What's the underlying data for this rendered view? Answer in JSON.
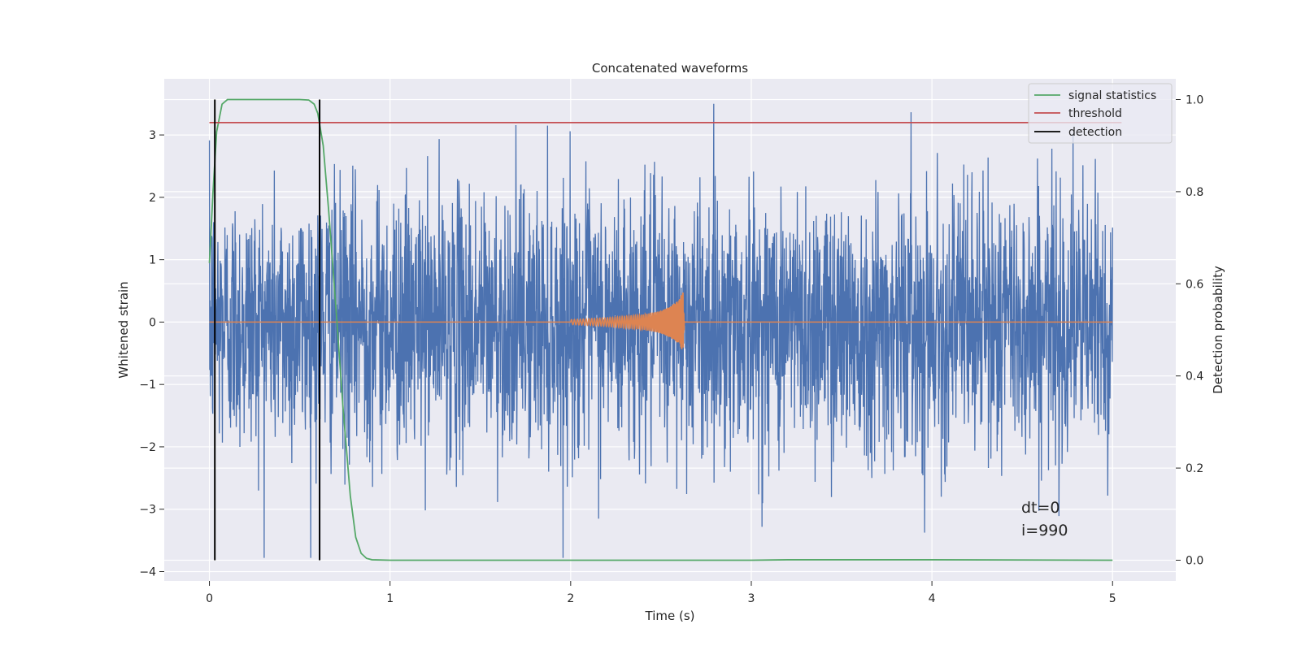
{
  "chart_data": {
    "type": "line",
    "title": "Concatenated waveforms",
    "xlabel": "Time (s)",
    "ylabel_left": "Whitened strain",
    "ylabel_right": "Detection probability",
    "xlim": [
      -0.25,
      5.35
    ],
    "ylim_left": [
      -4.15,
      3.9
    ],
    "ylim_right": [
      -0.045,
      1.045
    ],
    "x_ticks": [
      0,
      1,
      2,
      3,
      4,
      5
    ],
    "x_tick_labels": [
      "0",
      "1",
      "2",
      "3",
      "4",
      "5"
    ],
    "y_left_ticks": [
      -4,
      -3,
      -2,
      -1,
      0,
      1,
      2,
      3
    ],
    "y_left_tick_labels": [
      "−4",
      "−3",
      "−2",
      "−1",
      "0",
      "1",
      "2",
      "3"
    ],
    "y_right_ticks": [
      0.0,
      0.2,
      0.4,
      0.6,
      0.8,
      1.0
    ],
    "y_right_tick_labels": [
      "0.0",
      "0.2",
      "0.4",
      "0.6",
      "0.8",
      "1.0"
    ],
    "grid": true,
    "legend_placement": "top-right",
    "legend": [
      {
        "label": "signal statistics",
        "color": "#55a868"
      },
      {
        "label": "threshold",
        "color": "#c44e52"
      },
      {
        "label": "detection",
        "color": "#000000"
      }
    ],
    "series": [
      {
        "name": "",
        "kind": "noise",
        "axis": "left",
        "color": "#4c72b0",
        "x_range": [
          0,
          5
        ],
        "y_range": [
          -3.78,
          3.5
        ]
      },
      {
        "name": "",
        "kind": "chirp",
        "axis": "left",
        "color": "#dd8452",
        "x": [
          0,
          2.0,
          2.2,
          2.4,
          2.5,
          2.55,
          2.6,
          2.625,
          2.63,
          5
        ],
        "amplitude": [
          0,
          0.04,
          0.07,
          0.12,
          0.18,
          0.25,
          0.35,
          0.5,
          0,
          0
        ]
      },
      {
        "name": "signal statistics",
        "axis": "right",
        "color": "#55a868",
        "x": [
          0,
          0.02,
          0.04,
          0.07,
          0.1,
          0.2,
          0.3,
          0.4,
          0.5,
          0.55,
          0.58,
          0.6,
          0.63,
          0.66,
          0.7,
          0.74,
          0.78,
          0.81,
          0.84,
          0.87,
          0.9,
          1.0,
          2.0,
          3.0,
          3.2,
          4.0,
          5.0
        ],
        "y": [
          0.645,
          0.8,
          0.93,
          0.99,
          1.0,
          1.0,
          1.0,
          1.0,
          1.0,
          0.999,
          0.99,
          0.97,
          0.9,
          0.76,
          0.55,
          0.33,
          0.14,
          0.05,
          0.015,
          0.004,
          0.001,
          0.0,
          0.0,
          0.0,
          0.001,
          0.001,
          0.0
        ]
      },
      {
        "name": "threshold",
        "axis": "right",
        "color": "#c44e52",
        "x": [
          0,
          5.05
        ],
        "y": [
          0.95,
          0.95
        ]
      }
    ],
    "detections": [
      0.03,
      0.61
    ],
    "annotations": [
      "dt=0",
      "i=990"
    ]
  }
}
